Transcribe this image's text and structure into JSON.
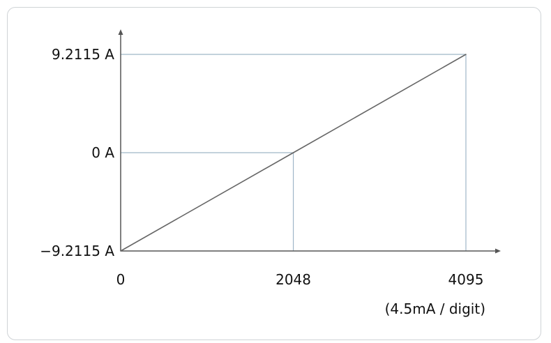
{
  "chart_data": {
    "type": "line",
    "title": "",
    "xlabel": "(4.5mA / digit)",
    "ylabel": "",
    "x_ticks": [
      {
        "value": 0,
        "label": "0"
      },
      {
        "value": 2048,
        "label": "2048"
      },
      {
        "value": 4095,
        "label": "4095"
      }
    ],
    "y_ticks": [
      {
        "value": -9.2115,
        "label": "-9.2115 A"
      },
      {
        "value": 0,
        "label": "0 A"
      },
      {
        "value": 9.2115,
        "label": "9.2115 A"
      }
    ],
    "xlim": [
      0,
      4095
    ],
    "ylim": [
      -9.2115,
      9.2115
    ],
    "series": [
      {
        "x": [
          0,
          2048,
          4095
        ],
        "y": [
          -9.2115,
          0,
          9.2115
        ]
      }
    ],
    "guides": [
      {
        "x": 2048,
        "y": 0
      },
      {
        "x": 4095,
        "y": 9.2115
      }
    ],
    "grid": false,
    "colors": {
      "axis": "#555555",
      "series": "#666666",
      "guide": "#9fb6c8"
    }
  }
}
